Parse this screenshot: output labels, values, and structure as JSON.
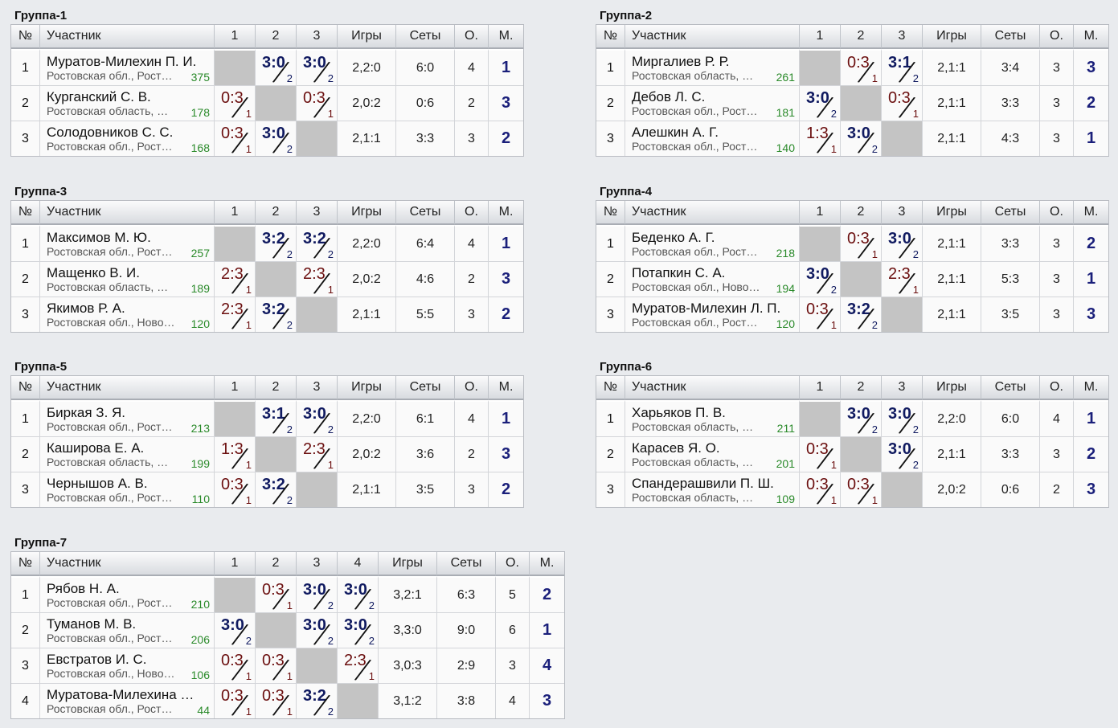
{
  "groups": [
    {
      "title": "Группа-1",
      "headers": [
        "№",
        "Участник",
        "1",
        "2",
        "3",
        "Игры",
        "Сеты",
        "О.",
        "М."
      ],
      "rows": [
        {
          "num": "1",
          "name": "Муратов-Милехин П. И.",
          "region": "Ростовская обл., Рост…",
          "rating": "375",
          "results": [
            {
              "self": true
            },
            {
              "score": "3:0",
              "sub": "2",
              "win": true
            },
            {
              "score": "3:0",
              "sub": "2",
              "win": true
            }
          ],
          "games": "2,2:0",
          "sets": "6:0",
          "points": "4",
          "place": "1"
        },
        {
          "num": "2",
          "name": "Курганский С. В.",
          "region": "Ростовская область, …",
          "rating": "178",
          "results": [
            {
              "score": "0:3",
              "sub": "1",
              "win": false
            },
            {
              "self": true
            },
            {
              "score": "0:3",
              "sub": "1",
              "win": false
            }
          ],
          "games": "2,0:2",
          "sets": "0:6",
          "points": "2",
          "place": "3"
        },
        {
          "num": "3",
          "name": "Солодовников С. С.",
          "region": "Ростовская обл., Рост…",
          "rating": "168",
          "results": [
            {
              "score": "0:3",
              "sub": "1",
              "win": false
            },
            {
              "score": "3:0",
              "sub": "2",
              "win": true
            },
            {
              "self": true
            }
          ],
          "games": "2,1:1",
          "sets": "3:3",
          "points": "3",
          "place": "2"
        }
      ]
    },
    {
      "title": "Группа-2",
      "headers": [
        "№",
        "Участник",
        "1",
        "2",
        "3",
        "Игры",
        "Сеты",
        "О.",
        "М."
      ],
      "rows": [
        {
          "num": "1",
          "name": "Миргалиев Р. Р.",
          "region": "Ростовская область, …",
          "rating": "261",
          "results": [
            {
              "self": true
            },
            {
              "score": "0:3",
              "sub": "1",
              "win": false
            },
            {
              "score": "3:1",
              "sub": "2",
              "win": true
            }
          ],
          "games": "2,1:1",
          "sets": "3:4",
          "points": "3",
          "place": "3"
        },
        {
          "num": "2",
          "name": "Дебов Л. С.",
          "region": "Ростовская обл., Рост…",
          "rating": "181",
          "results": [
            {
              "score": "3:0",
              "sub": "2",
              "win": true
            },
            {
              "self": true
            },
            {
              "score": "0:3",
              "sub": "1",
              "win": false
            }
          ],
          "games": "2,1:1",
          "sets": "3:3",
          "points": "3",
          "place": "2"
        },
        {
          "num": "3",
          "name": "Алешкин А. Г.",
          "region": "Ростовская обл., Рост…",
          "rating": "140",
          "results": [
            {
              "score": "1:3",
              "sub": "1",
              "win": false
            },
            {
              "score": "3:0",
              "sub": "2",
              "win": true
            },
            {
              "self": true
            }
          ],
          "games": "2,1:1",
          "sets": "4:3",
          "points": "3",
          "place": "1"
        }
      ]
    },
    {
      "title": "Группа-3",
      "headers": [
        "№",
        "Участник",
        "1",
        "2",
        "3",
        "Игры",
        "Сеты",
        "О.",
        "М."
      ],
      "rows": [
        {
          "num": "1",
          "name": "Максимов М. Ю.",
          "region": "Ростовская обл., Рост…",
          "rating": "257",
          "results": [
            {
              "self": true
            },
            {
              "score": "3:2",
              "sub": "2",
              "win": true
            },
            {
              "score": "3:2",
              "sub": "2",
              "win": true
            }
          ],
          "games": "2,2:0",
          "sets": "6:4",
          "points": "4",
          "place": "1"
        },
        {
          "num": "2",
          "name": "Мащенко В. И.",
          "region": "Ростовская область, …",
          "rating": "189",
          "results": [
            {
              "score": "2:3",
              "sub": "1",
              "win": false
            },
            {
              "self": true
            },
            {
              "score": "2:3",
              "sub": "1",
              "win": false
            }
          ],
          "games": "2,0:2",
          "sets": "4:6",
          "points": "2",
          "place": "3"
        },
        {
          "num": "3",
          "name": "Якимов Р. А.",
          "region": "Ростовская обл., Ново…",
          "rating": "120",
          "results": [
            {
              "score": "2:3",
              "sub": "1",
              "win": false
            },
            {
              "score": "3:2",
              "sub": "2",
              "win": true
            },
            {
              "self": true
            }
          ],
          "games": "2,1:1",
          "sets": "5:5",
          "points": "3",
          "place": "2"
        }
      ]
    },
    {
      "title": "Группа-4",
      "headers": [
        "№",
        "Участник",
        "1",
        "2",
        "3",
        "Игры",
        "Сеты",
        "О.",
        "М."
      ],
      "rows": [
        {
          "num": "1",
          "name": "Беденко А. Г.",
          "region": "Ростовская обл., Рост…",
          "rating": "218",
          "results": [
            {
              "self": true
            },
            {
              "score": "0:3",
              "sub": "1",
              "win": false
            },
            {
              "score": "3:0",
              "sub": "2",
              "win": true
            }
          ],
          "games": "2,1:1",
          "sets": "3:3",
          "points": "3",
          "place": "2"
        },
        {
          "num": "2",
          "name": "Потапкин С. А.",
          "region": "Ростовская обл., Ново…",
          "rating": "194",
          "results": [
            {
              "score": "3:0",
              "sub": "2",
              "win": true
            },
            {
              "self": true
            },
            {
              "score": "2:3",
              "sub": "1",
              "win": false
            }
          ],
          "games": "2,1:1",
          "sets": "5:3",
          "points": "3",
          "place": "1"
        },
        {
          "num": "3",
          "name": "Муратов-Милехин Л. П.",
          "region": "Ростовская обл., Рост…",
          "rating": "120",
          "results": [
            {
              "score": "0:3",
              "sub": "1",
              "win": false
            },
            {
              "score": "3:2",
              "sub": "2",
              "win": true
            },
            {
              "self": true
            }
          ],
          "games": "2,1:1",
          "sets": "3:5",
          "points": "3",
          "place": "3"
        }
      ]
    },
    {
      "title": "Группа-5",
      "headers": [
        "№",
        "Участник",
        "1",
        "2",
        "3",
        "Игры",
        "Сеты",
        "О.",
        "М."
      ],
      "rows": [
        {
          "num": "1",
          "name": "Биркая З. Я.",
          "region": "Ростовская обл., Рост…",
          "rating": "213",
          "results": [
            {
              "self": true
            },
            {
              "score": "3:1",
              "sub": "2",
              "win": true
            },
            {
              "score": "3:0",
              "sub": "2",
              "win": true
            }
          ],
          "games": "2,2:0",
          "sets": "6:1",
          "points": "4",
          "place": "1"
        },
        {
          "num": "2",
          "name": "Каширова Е. А.",
          "region": "Ростовская область, …",
          "rating": "199",
          "results": [
            {
              "score": "1:3",
              "sub": "1",
              "win": false
            },
            {
              "self": true
            },
            {
              "score": "2:3",
              "sub": "1",
              "win": false
            }
          ],
          "games": "2,0:2",
          "sets": "3:6",
          "points": "2",
          "place": "3"
        },
        {
          "num": "3",
          "name": "Чернышов А. В.",
          "region": "Ростовская обл., Рост…",
          "rating": "110",
          "results": [
            {
              "score": "0:3",
              "sub": "1",
              "win": false
            },
            {
              "score": "3:2",
              "sub": "2",
              "win": true
            },
            {
              "self": true
            }
          ],
          "games": "2,1:1",
          "sets": "3:5",
          "points": "3",
          "place": "2"
        }
      ]
    },
    {
      "title": "Группа-6",
      "headers": [
        "№",
        "Участник",
        "1",
        "2",
        "3",
        "Игры",
        "Сеты",
        "О.",
        "М."
      ],
      "rows": [
        {
          "num": "1",
          "name": "Харьяков П. В.",
          "region": "Ростовская область, …",
          "rating": "211",
          "results": [
            {
              "self": true
            },
            {
              "score": "3:0",
              "sub": "2",
              "win": true
            },
            {
              "score": "3:0",
              "sub": "2",
              "win": true
            }
          ],
          "games": "2,2:0",
          "sets": "6:0",
          "points": "4",
          "place": "1"
        },
        {
          "num": "2",
          "name": "Карасев Я. О.",
          "region": "Ростовская область, …",
          "rating": "201",
          "results": [
            {
              "score": "0:3",
              "sub": "1",
              "win": false
            },
            {
              "self": true
            },
            {
              "score": "3:0",
              "sub": "2",
              "win": true
            }
          ],
          "games": "2,1:1",
          "sets": "3:3",
          "points": "3",
          "place": "2"
        },
        {
          "num": "3",
          "name": "Спандерашвили П. Ш.",
          "region": "Ростовская область, …",
          "rating": "109",
          "results": [
            {
              "score": "0:3",
              "sub": "1",
              "win": false
            },
            {
              "score": "0:3",
              "sub": "1",
              "win": false
            },
            {
              "self": true
            }
          ],
          "games": "2,0:2",
          "sets": "0:6",
          "points": "2",
          "place": "3"
        }
      ]
    },
    {
      "title": "Группа-7",
      "headers": [
        "№",
        "Участник",
        "1",
        "2",
        "3",
        "4",
        "Игры",
        "Сеты",
        "О.",
        "М."
      ],
      "rows": [
        {
          "num": "1",
          "name": "Рябов Н. А.",
          "region": "Ростовская обл., Рост…",
          "rating": "210",
          "results": [
            {
              "self": true
            },
            {
              "score": "0:3",
              "sub": "1",
              "win": false
            },
            {
              "score": "3:0",
              "sub": "2",
              "win": true
            },
            {
              "score": "3:0",
              "sub": "2",
              "win": true
            }
          ],
          "games": "3,2:1",
          "sets": "6:3",
          "points": "5",
          "place": "2"
        },
        {
          "num": "2",
          "name": "Туманов М. В.",
          "region": "Ростовская обл., Рост…",
          "rating": "206",
          "results": [
            {
              "score": "3:0",
              "sub": "2",
              "win": true
            },
            {
              "self": true
            },
            {
              "score": "3:0",
              "sub": "2",
              "win": true
            },
            {
              "score": "3:0",
              "sub": "2",
              "win": true
            }
          ],
          "games": "3,3:0",
          "sets": "9:0",
          "points": "6",
          "place": "1"
        },
        {
          "num": "3",
          "name": "Евстратов И. С.",
          "region": "Ростовская обл., Ново…",
          "rating": "106",
          "results": [
            {
              "score": "0:3",
              "sub": "1",
              "win": false
            },
            {
              "score": "0:3",
              "sub": "1",
              "win": false
            },
            {
              "self": true
            },
            {
              "score": "2:3",
              "sub": "1",
              "win": false
            }
          ],
          "games": "3,0:3",
          "sets": "2:9",
          "points": "3",
          "place": "4"
        },
        {
          "num": "4",
          "name": "Муратова-Милехина …",
          "region": "Ростовская обл., Рост…",
          "rating": "44",
          "results": [
            {
              "score": "0:3",
              "sub": "1",
              "win": false
            },
            {
              "score": "0:3",
              "sub": "1",
              "win": false
            },
            {
              "score": "3:2",
              "sub": "2",
              "win": true
            },
            {
              "self": true
            }
          ],
          "games": "3,1:2",
          "sets": "3:8",
          "points": "4",
          "place": "3"
        }
      ]
    }
  ]
}
